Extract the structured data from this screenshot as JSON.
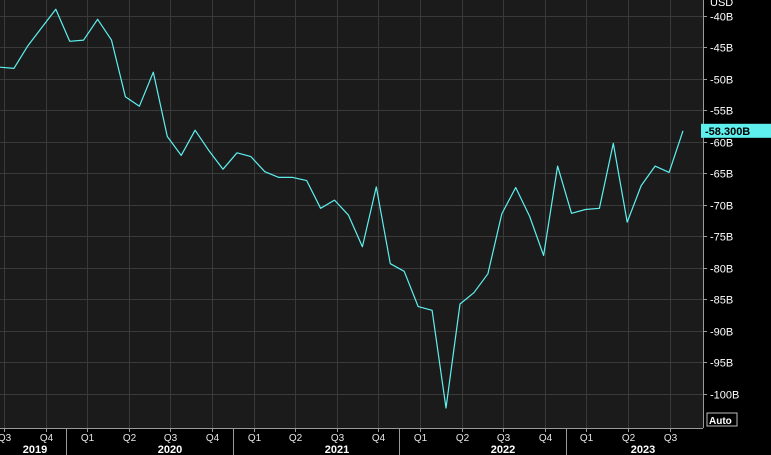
{
  "chart_data": {
    "type": "line",
    "unit_label": "USD",
    "ylim": [
      -105,
      -37
    ],
    "y_ticks": [
      -40,
      -45,
      -50,
      -55,
      -60,
      -65,
      -70,
      -75,
      -80,
      -85,
      -90,
      -95,
      -100
    ],
    "y_tick_labels": [
      "-40B",
      "-45B",
      "-50B",
      "-55B",
      "-60B",
      "-65B",
      "-70B",
      "-75B",
      "-80B",
      "-85B",
      "-90B",
      "-95B",
      "-100B"
    ],
    "x_quarter_labels": [
      "Q3",
      "Q4",
      "Q1",
      "Q2",
      "Q3",
      "Q4",
      "Q1",
      "Q2",
      "Q3",
      "Q4",
      "Q1",
      "Q2",
      "Q3",
      "Q4",
      "Q1",
      "Q2",
      "Q3"
    ],
    "year_labels": [
      "2019",
      "2020",
      "2021",
      "2022",
      "2023"
    ],
    "last_value_label": "-58.300B",
    "auto_label": "Auto",
    "grid": true,
    "colors": {
      "background": "#000000",
      "plot_background": "#1b1b1b",
      "grid": "#3a3a3a",
      "line": "#5ef0ef",
      "last_value_bg": "#5ef0ef"
    },
    "series": [
      {
        "values": [
          -48.2,
          -48.4,
          -44.8,
          -41.9,
          -39.0,
          -44.1,
          -43.9,
          -40.6,
          -43.9,
          -52.9,
          -54.4,
          -49.0,
          -59.2,
          -62.2,
          -58.2,
          -61.5,
          -64.4,
          -61.8,
          -62.4,
          -64.8,
          -65.7,
          -65.7,
          -66.2,
          -70.6,
          -69.3,
          -71.7,
          -76.7,
          -67.2,
          -79.4,
          -80.6,
          -86.2,
          -86.8,
          -102.3,
          -85.8,
          -84.0,
          -81.0,
          -71.5,
          -67.3,
          -71.9,
          -78.1,
          -63.9,
          -71.4,
          -70.8,
          -70.6,
          -60.3,
          -72.8,
          -67.0,
          -63.9,
          -64.9,
          -58.3
        ]
      }
    ]
  }
}
